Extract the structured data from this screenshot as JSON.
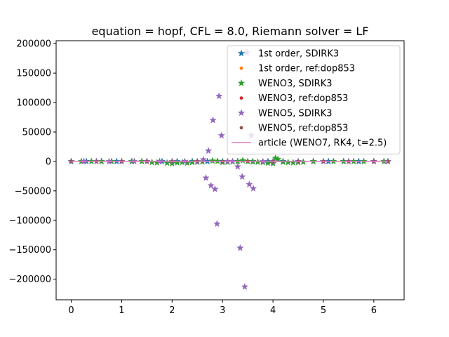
{
  "chart_data": {
    "type": "scatter",
    "title": "equation = hopf, CFL = 8.0, Riemann solver = LF",
    "xlabel": "",
    "ylabel": "",
    "xlim": [
      -0.3,
      6.6
    ],
    "ylim": [
      -235000,
      205000
    ],
    "xticks": [
      0,
      1,
      2,
      3,
      4,
      5,
      6
    ],
    "yticks": [
      -200000,
      -150000,
      -100000,
      -50000,
      0,
      50000,
      100000,
      150000,
      200000
    ],
    "legend_position": "top-right",
    "series": [
      {
        "name": "1st order, SDIRK3",
        "marker": "star",
        "color": "#1f77b4",
        "x": [
          0.0,
          0.3,
          0.6,
          0.9,
          1.2,
          1.5,
          1.8,
          2.1,
          2.4,
          2.7,
          3.0,
          3.3,
          3.6,
          3.9,
          4.2,
          4.5,
          4.8,
          5.1,
          5.4,
          5.7,
          6.0,
          6.28
        ],
        "y": [
          0,
          0,
          0,
          0,
          0,
          0,
          0,
          0,
          0,
          0,
          0,
          0,
          0,
          0,
          0,
          0,
          0,
          0,
          0,
          0,
          0,
          0
        ]
      },
      {
        "name": "1st order, ref:dop853",
        "marker": "dot",
        "color": "#ff7f0e",
        "x": [
          0.0,
          0.5,
          1.0,
          1.5,
          2.0,
          2.5,
          3.0,
          3.5,
          4.0,
          4.5,
          5.0,
          5.5,
          6.0
        ],
        "y": [
          0,
          0,
          0,
          0,
          0,
          0,
          0,
          0,
          0,
          0,
          0,
          0,
          0
        ]
      },
      {
        "name": "WENO3, SDIRK3",
        "marker": "star",
        "color": "#2ca02c",
        "x": [
          0.0,
          0.2,
          0.4,
          0.6,
          0.8,
          1.0,
          1.2,
          1.4,
          1.6,
          1.7,
          1.9,
          2.0,
          2.1,
          2.2,
          2.3,
          2.4,
          2.5,
          2.6,
          2.8,
          2.9,
          3.0,
          3.1,
          3.2,
          3.3,
          3.4,
          3.5,
          3.6,
          3.7,
          3.8,
          3.9,
          4.0,
          4.05,
          4.1,
          4.2,
          4.3,
          4.4,
          4.5,
          4.6,
          4.8,
          5.0,
          5.2,
          5.4,
          5.6,
          5.8,
          6.0,
          6.2
        ],
        "y": [
          0,
          0,
          0,
          0,
          0,
          0,
          0,
          0,
          -1500,
          -2000,
          -2500,
          -3500,
          -2000,
          -1500,
          -2500,
          -1500,
          -1000,
          -500,
          1000,
          500,
          -1500,
          -1000,
          -500,
          0,
          1500,
          0,
          -500,
          -1000,
          -1500,
          -2500,
          -3500,
          5500,
          3500,
          -1000,
          -1500,
          -2000,
          -1500,
          -1000,
          0,
          0,
          0,
          0,
          0,
          0,
          0,
          0
        ]
      },
      {
        "name": "WENO3, ref:dop853",
        "marker": "dot",
        "color": "#d62728",
        "x": [
          0.0,
          0.5,
          1.0,
          1.5,
          2.0,
          2.5,
          3.0,
          3.5,
          4.0,
          4.5,
          5.0,
          5.5,
          6.0
        ],
        "y": [
          0,
          0,
          0,
          0,
          0,
          0,
          0,
          0,
          0,
          0,
          0,
          0,
          0
        ]
      },
      {
        "name": "WENO5, SDIRK3",
        "marker": "star",
        "color": "#9467bd",
        "x": [
          0.0,
          0.25,
          0.5,
          0.75,
          1.0,
          1.25,
          1.5,
          1.75,
          2.0,
          2.25,
          2.5,
          2.62,
          2.67,
          2.72,
          2.77,
          2.81,
          2.85,
          2.89,
          2.93,
          2.98,
          3.1,
          3.2,
          3.3,
          3.35,
          3.39,
          3.44,
          3.48,
          3.53,
          3.57,
          3.61,
          3.8,
          4.0,
          4.5,
          5.0,
          5.5,
          6.0,
          6.28
        ],
        "y": [
          0,
          0,
          0,
          0,
          0,
          0,
          0,
          0,
          0,
          0,
          0,
          3000,
          -28000,
          18000,
          -41000,
          70000,
          -47000,
          -106000,
          111000,
          44000,
          0,
          0,
          -9000,
          -147000,
          -26000,
          -213000,
          185000,
          -39000,
          44000,
          -46000,
          0,
          0,
          0,
          0,
          0,
          0,
          0
        ]
      },
      {
        "name": "WENO5, ref:dop853",
        "marker": "dot",
        "color": "#8c564b",
        "x": [
          0.0,
          0.5,
          1.0,
          1.5,
          2.0,
          2.5,
          3.0,
          3.5,
          4.0,
          4.5,
          5.0,
          5.5,
          6.0,
          6.28
        ],
        "y": [
          0,
          0,
          0,
          0,
          0,
          0,
          0,
          0,
          0,
          0,
          0,
          0,
          0,
          0
        ]
      },
      {
        "name": "article (WENO7, RK4, t=2.5)",
        "marker": "line",
        "color": "#e377c2",
        "x": [
          0.0,
          6.28
        ],
        "y": [
          0,
          0
        ]
      }
    ]
  }
}
